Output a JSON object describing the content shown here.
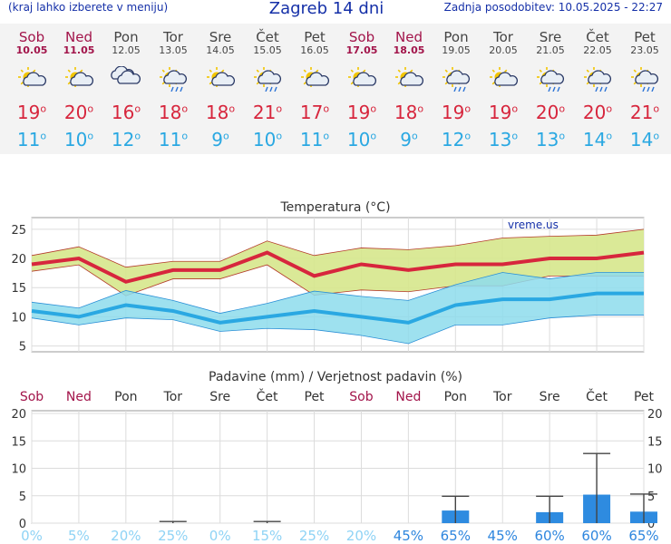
{
  "header": {
    "left_note": "(kraj lahko izberete v meniju)",
    "title": "Zagreb 14 dni",
    "updated": "Zadnja posodobitev: 10.05.2025 - 22:27"
  },
  "days": [
    {
      "name": "Sob",
      "date": "10.05",
      "weekend": true,
      "icon": "sun-cloud-icon",
      "tmax": "19",
      "tmin": "11"
    },
    {
      "name": "Ned",
      "date": "11.05",
      "weekend": true,
      "icon": "sun-cloud-icon",
      "tmax": "20",
      "tmin": "10"
    },
    {
      "name": "Pon",
      "date": "12.05",
      "weekend": false,
      "icon": "cloud-icon",
      "tmax": "16",
      "tmin": "12"
    },
    {
      "name": "Tor",
      "date": "13.05",
      "weekend": false,
      "icon": "sun-cloud-rain-icon",
      "tmax": "18",
      "tmin": "11"
    },
    {
      "name": "Sre",
      "date": "14.05",
      "weekend": false,
      "icon": "sun-cloud-icon",
      "tmax": "18",
      "tmin": "9"
    },
    {
      "name": "Čet",
      "date": "15.05",
      "weekend": false,
      "icon": "sun-cloud-rain-icon",
      "tmax": "21",
      "tmin": "10"
    },
    {
      "name": "Pet",
      "date": "16.05",
      "weekend": false,
      "icon": "sun-cloud-icon",
      "tmax": "17",
      "tmin": "11"
    },
    {
      "name": "Sob",
      "date": "17.05",
      "weekend": true,
      "icon": "sun-cloud-icon",
      "tmax": "19",
      "tmin": "10"
    },
    {
      "name": "Ned",
      "date": "18.05",
      "weekend": true,
      "icon": "sun-cloud-icon",
      "tmax": "18",
      "tmin": "9"
    },
    {
      "name": "Pon",
      "date": "19.05",
      "weekend": false,
      "icon": "sun-cloud-rain-icon",
      "tmax": "19",
      "tmin": "12"
    },
    {
      "name": "Tor",
      "date": "20.05",
      "weekend": false,
      "icon": "sun-cloud-icon",
      "tmax": "19",
      "tmin": "13"
    },
    {
      "name": "Sre",
      "date": "21.05",
      "weekend": false,
      "icon": "sun-cloud-rain-icon",
      "tmax": "20",
      "tmin": "13"
    },
    {
      "name": "Čet",
      "date": "22.05",
      "weekend": false,
      "icon": "sun-cloud-rain-icon",
      "tmax": "20",
      "tmin": "14"
    },
    {
      "name": "Pet",
      "date": "23.05",
      "weekend": false,
      "icon": "sun-cloud-rain-icon",
      "tmax": "21",
      "tmin": "14"
    }
  ],
  "colors": {
    "title_blue": "#1530a8",
    "weekend": "#a2144a",
    "tmax": "#d7263d",
    "tmin": "#2aa8e2",
    "tmax_band": "#d6e78c",
    "tmin_band": "#8ddcec",
    "precip_bar": "#2e8be0",
    "precip_pct": "#2e86de"
  },
  "chart_data": [
    {
      "type": "line",
      "title": "Temperatura (°C)",
      "watermark": "vreme.us",
      "categories": [
        "Sob",
        "Ned",
        "Pon",
        "Tor",
        "Sre",
        "Čet",
        "Pet",
        "Sob",
        "Ned",
        "Pon",
        "Tor",
        "Sre",
        "Čet",
        "Pet"
      ],
      "ylim": [
        4,
        27
      ],
      "yticks": [
        5,
        10,
        15,
        20,
        25
      ],
      "grid": true,
      "series": [
        {
          "values": [
            19,
            20,
            16,
            18,
            18,
            21,
            17,
            19,
            18,
            19,
            19,
            20,
            20,
            21
          ]
        },
        {
          "values": [
            11,
            10,
            12,
            11,
            9,
            10,
            11,
            10,
            9,
            12,
            13,
            13,
            14,
            14
          ]
        }
      ],
      "bands": [
        {
          "upper": [
            20.5,
            22,
            18.5,
            19.5,
            19.5,
            23,
            20.5,
            21.8,
            21.5,
            22.2,
            23.5,
            23.8,
            24,
            25
          ],
          "lower": [
            17.8,
            18.9,
            13.6,
            16.5,
            16.5,
            18.9,
            13.7,
            14.6,
            14.3,
            15.3,
            15.3,
            17,
            17,
            17
          ]
        },
        {
          "upper": [
            12.5,
            11.5,
            14.5,
            12.8,
            10.6,
            12.3,
            14.4,
            13.5,
            12.8,
            15.5,
            17.6,
            16.5,
            17.6,
            17.6
          ],
          "lower": [
            9.8,
            8.6,
            9.8,
            9.5,
            7.5,
            8,
            7.8,
            6.8,
            5.4,
            8.6,
            8.6,
            9.8,
            10.3,
            10.3
          ]
        }
      ]
    },
    {
      "type": "bar",
      "title": "Padavine (mm) / Verjetnost padavin (%)",
      "categories": [
        "Sob",
        "Ned",
        "Pon",
        "Tor",
        "Sre",
        "Čet",
        "Pet",
        "Sob",
        "Ned",
        "Pon",
        "Tor",
        "Sre",
        "Čet",
        "Pet"
      ],
      "ylim": [
        0,
        20.5
      ],
      "yticks": [
        0,
        5,
        10,
        15,
        20
      ],
      "grid": true,
      "values": [
        0,
        0,
        0,
        0,
        0,
        0,
        0,
        0,
        0,
        2.3,
        0,
        2,
        5.2,
        2.1
      ],
      "error_low": [
        0,
        0,
        0,
        0,
        0,
        0,
        0,
        0,
        0,
        0,
        0,
        0,
        0,
        0
      ],
      "error_high": [
        0,
        0,
        0,
        0.3,
        0,
        0.3,
        0,
        0,
        0,
        4.9,
        0,
        4.9,
        12.7,
        5.3
      ],
      "probability": [
        "0%",
        "5%",
        "20%",
        "25%",
        "0%",
        "15%",
        "25%",
        "20%",
        "45%",
        "65%",
        "45%",
        "60%",
        "60%",
        "65%"
      ]
    }
  ]
}
